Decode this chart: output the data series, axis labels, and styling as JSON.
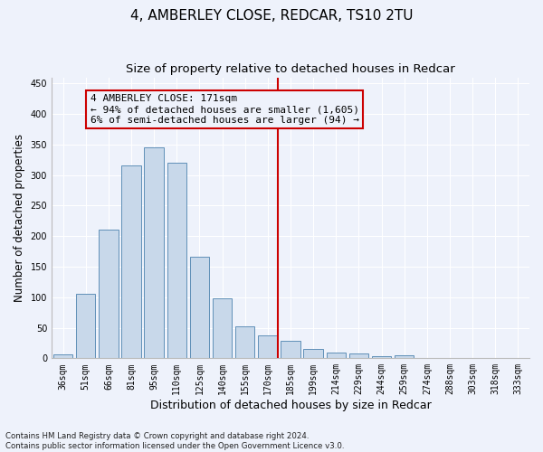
{
  "title": "4, AMBERLEY CLOSE, REDCAR, TS10 2TU",
  "subtitle": "Size of property relative to detached houses in Redcar",
  "xlabel": "Distribution of detached houses by size in Redcar",
  "ylabel": "Number of detached properties",
  "categories": [
    "36sqm",
    "51sqm",
    "66sqm",
    "81sqm",
    "95sqm",
    "110sqm",
    "125sqm",
    "140sqm",
    "155sqm",
    "170sqm",
    "185sqm",
    "199sqm",
    "214sqm",
    "229sqm",
    "244sqm",
    "259sqm",
    "274sqm",
    "288sqm",
    "303sqm",
    "318sqm",
    "333sqm"
  ],
  "values": [
    6,
    106,
    210,
    316,
    345,
    320,
    167,
    98,
    52,
    37,
    28,
    16,
    10,
    8,
    3,
    5,
    1,
    0,
    1,
    0,
    1
  ],
  "bar_color": "#c8d8ea",
  "bar_edge_color": "#6090b8",
  "vline_x_index": 9,
  "vline_color": "#cc0000",
  "annotation_line1": "4 AMBERLEY CLOSE: 171sqm",
  "annotation_line2": "← 94% of detached houses are smaller (1,605)",
  "annotation_line3": "6% of semi-detached houses are larger (94) →",
  "ylim": [
    0,
    460
  ],
  "yticks": [
    0,
    50,
    100,
    150,
    200,
    250,
    300,
    350,
    400,
    450
  ],
  "footnote": "Contains HM Land Registry data © Crown copyright and database right 2024.\nContains public sector information licensed under the Open Government Licence v3.0.",
  "bg_color": "#eef2fb",
  "grid_color": "#ffffff",
  "title_fontsize": 11,
  "subtitle_fontsize": 9.5,
  "ylabel_fontsize": 8.5,
  "xlabel_fontsize": 9,
  "tick_fontsize": 7,
  "annot_fontsize": 8,
  "footnote_fontsize": 6.2
}
